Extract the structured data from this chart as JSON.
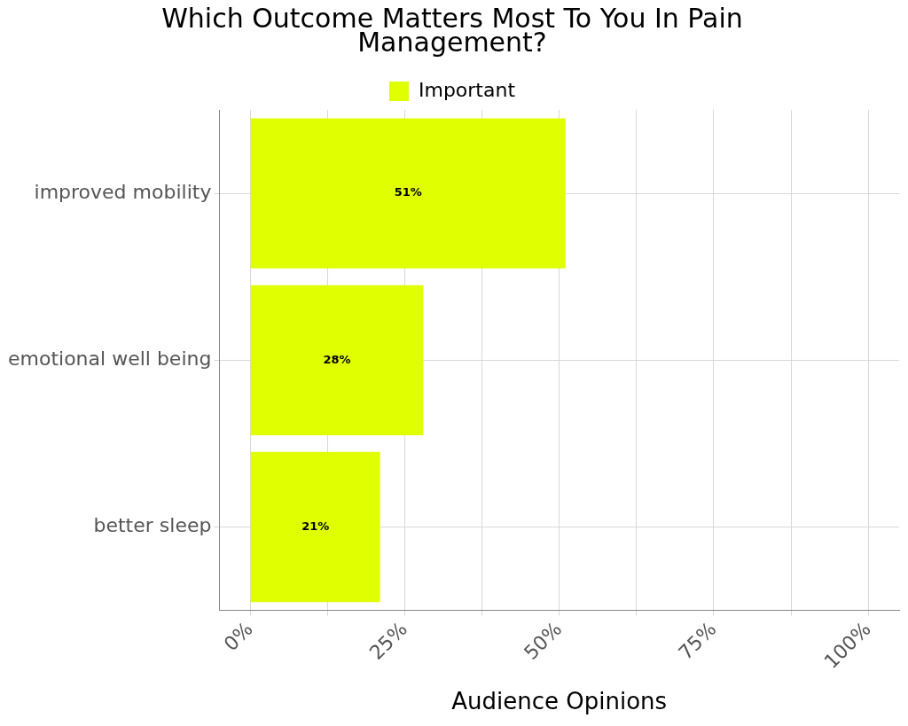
{
  "chart_data": {
    "type": "bar",
    "orientation": "horizontal",
    "title": "Which Outcome Matters Most To You In Pain Management?",
    "xlabel": "Audience Opinions",
    "categories": [
      "improved mobility",
      "emotional well being",
      "better sleep"
    ],
    "series": [
      {
        "name": "Important",
        "color": "#e0ff00",
        "values": [
          51,
          28,
          21
        ],
        "value_labels": [
          "51%",
          "28%",
          "21%"
        ]
      }
    ],
    "xlim": [
      -5,
      105
    ],
    "xticks": [
      {
        "value": 0,
        "label": "0%"
      },
      {
        "value": 12.5,
        "label": null
      },
      {
        "value": 25,
        "label": "25%"
      },
      {
        "value": 37.5,
        "label": null
      },
      {
        "value": 50,
        "label": "50%"
      },
      {
        "value": 62.5,
        "label": null
      },
      {
        "value": 75,
        "label": "75%"
      },
      {
        "value": 87.5,
        "label": null
      },
      {
        "value": 100,
        "label": "100%"
      }
    ],
    "grid": true,
    "legend": "top"
  }
}
